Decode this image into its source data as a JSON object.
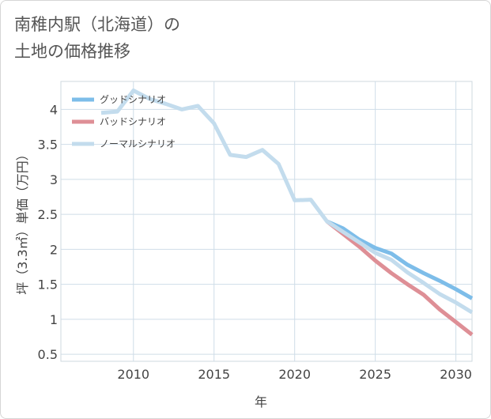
{
  "header": {
    "title_line1": "南稚内駅（北海道）の",
    "title_line2": "土地の価格推移"
  },
  "chart_data": {
    "type": "line",
    "xlabel": "年",
    "ylabel": "坪（3.3㎡）単価（万円）",
    "xlim": [
      2005.5,
      2031
    ],
    "ylim": [
      0.4,
      4.4
    ],
    "x_ticks": [
      2010,
      2015,
      2020,
      2025,
      2030
    ],
    "y_ticks": [
      0.5,
      1,
      1.5,
      2,
      2.5,
      3,
      3.5,
      4
    ],
    "grid": true,
    "legend_position": "top-left",
    "series": [
      {
        "name": "グッドシナリオ",
        "color": "#7dbde9",
        "x": [
          2022,
          2023,
          2024,
          2025,
          2026,
          2027,
          2028,
          2029,
          2030,
          2031
        ],
        "y": [
          2.4,
          2.3,
          2.14,
          2.02,
          1.94,
          1.78,
          1.66,
          1.55,
          1.43,
          1.3
        ]
      },
      {
        "name": "バッドシナリオ",
        "color": "#de8f96",
        "x": [
          2022,
          2023,
          2024,
          2025,
          2026,
          2027,
          2028,
          2029,
          2030,
          2031
        ],
        "y": [
          2.4,
          2.22,
          2.04,
          1.84,
          1.66,
          1.5,
          1.35,
          1.14,
          0.96,
          0.78
        ]
      },
      {
        "name": "ノーマルシナリオ",
        "color": "#c3dced",
        "x": [
          2008,
          2009,
          2010,
          2011,
          2012,
          2013,
          2014,
          2015,
          2016,
          2017,
          2018,
          2019,
          2020,
          2021,
          2022,
          2023,
          2024,
          2025,
          2026,
          2027,
          2028,
          2029,
          2030,
          2031
        ],
        "y": [
          3.95,
          3.97,
          4.27,
          4.15,
          4.08,
          4.0,
          4.05,
          3.8,
          3.35,
          3.32,
          3.42,
          3.22,
          2.7,
          2.71,
          2.4,
          2.25,
          2.1,
          1.95,
          1.85,
          1.67,
          1.52,
          1.36,
          1.24,
          1.1
        ]
      }
    ]
  }
}
